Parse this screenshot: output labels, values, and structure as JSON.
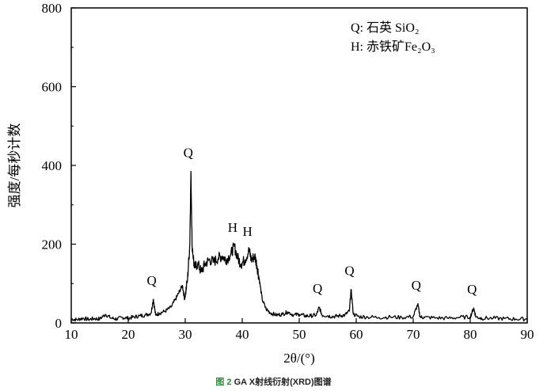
{
  "chart_data": {
    "type": "line",
    "title": "",
    "xlabel": "2θ/(°)",
    "ylabel": "强度/每秒计数",
    "xlim": [
      10,
      90
    ],
    "ylim": [
      0,
      800
    ],
    "x_ticks": [
      "10",
      "20",
      "30",
      "40",
      "50",
      "60",
      "70",
      "80",
      "90"
    ],
    "y_ticks": [
      "0",
      "200",
      "400",
      "600",
      "800"
    ],
    "series": [
      {
        "x": [
          10,
          11,
          12,
          13,
          14,
          15,
          16,
          17,
          18,
          19,
          20,
          21,
          22,
          23,
          24,
          24.4,
          24.8,
          25.5,
          26.5,
          27.5,
          28.3,
          28.8,
          29.5,
          29.9,
          30.4,
          30.8,
          31.0,
          31.2,
          31.6,
          32.2,
          32.8,
          33.5,
          34.2,
          35.0,
          35.8,
          36.5,
          37.2,
          38.0,
          38.6,
          39.2,
          39.8,
          40.5,
          41.2,
          41.6,
          42.2,
          42.6,
          43.0,
          43.5,
          44.2,
          45.0,
          46.0,
          47.0,
          48.0,
          49.0,
          50.0,
          51.0,
          52.0,
          53.0,
          53.5,
          54.0,
          55.0,
          56.0,
          57.0,
          58.0,
          58.8,
          59.1,
          59.5,
          60.5,
          62.0,
          64.0,
          66.0,
          68.0,
          70.0,
          70.8,
          71.2,
          72.0,
          74.0,
          76.0,
          78.0,
          80.0,
          80.6,
          81.0,
          82.0,
          84.0,
          86.0,
          88.0,
          90.0
        ],
        "values": [
          10,
          8,
          12,
          9,
          11,
          10,
          22,
          12,
          10,
          14,
          12,
          15,
          18,
          20,
          25,
          60,
          20,
          25,
          30,
          40,
          60,
          75,
          95,
          60,
          110,
          200,
          385,
          200,
          140,
          150,
          130,
          150,
          160,
          155,
          165,
          170,
          160,
          175,
          195,
          165,
          150,
          160,
          185,
          160,
          170,
          145,
          110,
          60,
          35,
          25,
          20,
          22,
          28,
          20,
          22,
          18,
          18,
          20,
          40,
          20,
          18,
          16,
          18,
          20,
          30,
          85,
          22,
          16,
          15,
          14,
          15,
          14,
          16,
          48,
          15,
          14,
          13,
          12,
          14,
          15,
          38,
          15,
          12,
          12,
          11,
          10,
          10
        ]
      }
    ],
    "annotations": [
      {
        "label": "Q",
        "x": 24.4,
        "y": 60
      },
      {
        "label": "Q",
        "x": 30.8,
        "y": 385
      },
      {
        "label": "H",
        "x": 38.6,
        "y": 195
      },
      {
        "label": "H",
        "x": 41.2,
        "y": 185
      },
      {
        "label": "Q",
        "x": 53.5,
        "y": 40
      },
      {
        "label": "Q",
        "x": 59.1,
        "y": 85
      },
      {
        "label": "Q",
        "x": 70.8,
        "y": 48
      },
      {
        "label": "Q",
        "x": 80.6,
        "y": 38
      }
    ],
    "legend": [
      "Q: 石英 SiO₂",
      "H: 赤铁矿Fe₂O₃"
    ],
    "legend_position": "top-right",
    "grid": false
  },
  "caption": {
    "number": "图 2",
    "text": "GA X射线衍射(XRD)图谱"
  }
}
